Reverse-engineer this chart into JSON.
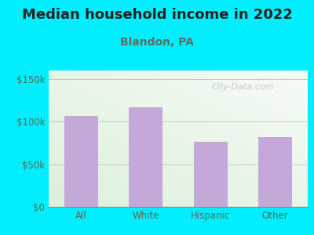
{
  "title": "Median household income in 2022",
  "subtitle": "Blandon, PA",
  "categories": [
    "All",
    "White",
    "Hispanic",
    "Other"
  ],
  "values": [
    107000,
    117000,
    76000,
    82000
  ],
  "bar_color": "#c4a8d8",
  "bar_edge_color": "#b898c8",
  "yticks": [
    0,
    50000,
    100000,
    150000
  ],
  "ytick_labels": [
    "$0",
    "$50k",
    "$100k",
    "$150k"
  ],
  "ylim": [
    0,
    160000
  ],
  "bg_outer": "#00eeff",
  "title_fontsize": 13,
  "subtitle_fontsize": 10,
  "watermark": "City-Data.com",
  "title_color": "#222222",
  "subtitle_color": "#5a7060",
  "tick_label_color": "#5a6a50"
}
